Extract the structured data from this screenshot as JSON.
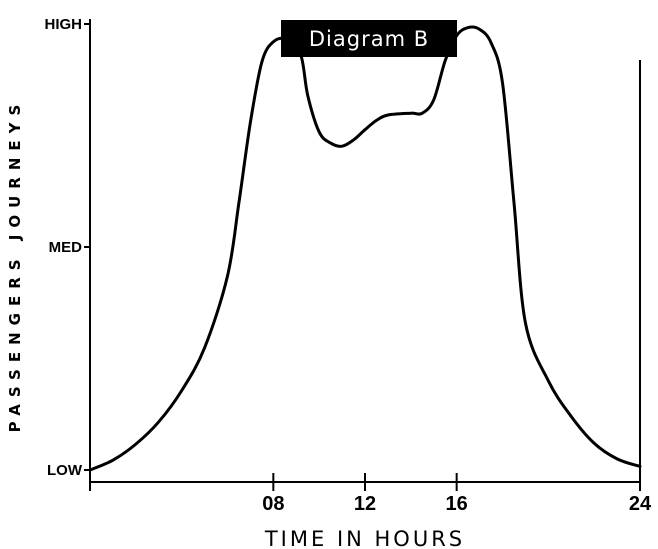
{
  "chart_data": {
    "type": "line",
    "title": "Diagram B",
    "xlabel": "TIME IN HOURS",
    "ylabel": "PASSENGERS JOURNEYS",
    "x_ticks": [
      {
        "value": 0,
        "label": ""
      },
      {
        "value": 8,
        "label": "08"
      },
      {
        "value": 12,
        "label": "12"
      },
      {
        "value": 16,
        "label": "16"
      },
      {
        "value": 24,
        "label": "24"
      }
    ],
    "y_ticks": [
      {
        "value": 0,
        "label": "LOW"
      },
      {
        "value": 0.5,
        "label": "MED"
      },
      {
        "value": 1,
        "label": "HIGH"
      }
    ],
    "xlim": [
      0,
      24
    ],
    "ylim": [
      0,
      1
    ],
    "series": [
      {
        "color": "#000000",
        "points": [
          {
            "x": 0,
            "y": 0.0
          },
          {
            "x": 1,
            "y": 0.022
          },
          {
            "x": 2,
            "y": 0.058
          },
          {
            "x": 3,
            "y": 0.108
          },
          {
            "x": 4,
            "y": 0.178
          },
          {
            "x": 5,
            "y": 0.274
          },
          {
            "x": 6,
            "y": 0.435
          },
          {
            "x": 6.5,
            "y": 0.6
          },
          {
            "x": 7,
            "y": 0.78
          },
          {
            "x": 7.5,
            "y": 0.915
          },
          {
            "x": 8,
            "y": 0.96
          },
          {
            "x": 8.6,
            "y": 0.965
          },
          {
            "x": 9.2,
            "y": 0.93
          },
          {
            "x": 9.5,
            "y": 0.84
          },
          {
            "x": 10,
            "y": 0.758
          },
          {
            "x": 10.5,
            "y": 0.733
          },
          {
            "x": 11,
            "y": 0.726
          },
          {
            "x": 11.5,
            "y": 0.74
          },
          {
            "x": 12,
            "y": 0.763
          },
          {
            "x": 12.5,
            "y": 0.784
          },
          {
            "x": 13,
            "y": 0.796
          },
          {
            "x": 14,
            "y": 0.8
          },
          {
            "x": 14.5,
            "y": 0.8
          },
          {
            "x": 15,
            "y": 0.83
          },
          {
            "x": 15.5,
            "y": 0.918
          },
          {
            "x": 16,
            "y": 0.974
          },
          {
            "x": 16.5,
            "y": 0.992
          },
          {
            "x": 17,
            "y": 0.988
          },
          {
            "x": 17.5,
            "y": 0.958
          },
          {
            "x": 18,
            "y": 0.868
          },
          {
            "x": 18.5,
            "y": 0.6
          },
          {
            "x": 19,
            "y": 0.33
          },
          {
            "x": 20,
            "y": 0.2
          },
          {
            "x": 21,
            "y": 0.12
          },
          {
            "x": 22,
            "y": 0.06
          },
          {
            "x": 23,
            "y": 0.025
          },
          {
            "x": 24,
            "y": 0.008
          }
        ]
      }
    ],
    "grid": false,
    "legend": "none"
  }
}
